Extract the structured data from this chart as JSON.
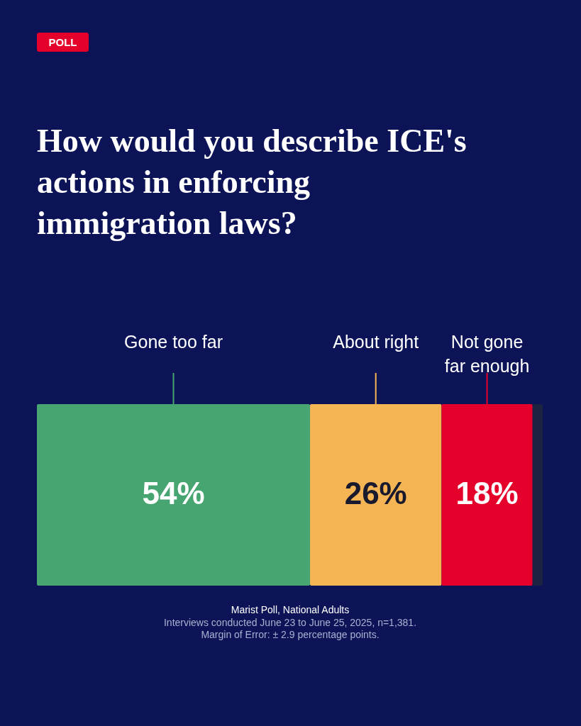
{
  "chart_data": {
    "type": "bar",
    "orientation": "horizontal",
    "stacked": true,
    "title": "How would you describe ICE's actions in enforcing immigration laws?",
    "categories": [
      null
    ],
    "xlim": [
      0,
      100
    ],
    "tick_labels": false,
    "grid": false,
    "legend": false,
    "series": [
      {
        "name": "Gone too far",
        "color": "#46a570",
        "values": [
          54
        ],
        "value_labels": [
          "54%"
        ]
      },
      {
        "name": "About right",
        "color": "#f6b555",
        "values": [
          26
        ],
        "value_labels": [
          "26%"
        ]
      },
      {
        "name": "Not gone far enough",
        "color": "#e4002b",
        "values": [
          18
        ],
        "value_labels": [
          "18%"
        ]
      },
      {
        "color": "#1c2340",
        "values": [
          2
        ],
        "value_labels": [
          null
        ]
      }
    ],
    "annotations": [
      "POLL",
      "Marist Poll, National Adults",
      "Interviews conducted June 23 to June 25, 2025, n=1,381.",
      "Margin of Error: ± 2.9 percentage points."
    ]
  }
}
